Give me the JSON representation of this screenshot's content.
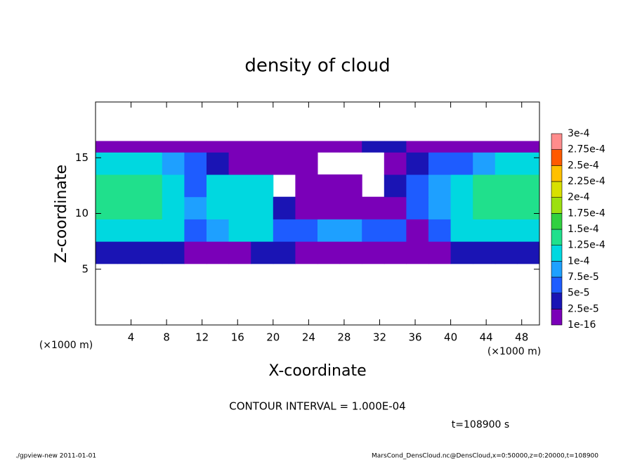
{
  "chart_data": {
    "type": "contour",
    "title": "density of cloud",
    "xlabel": "X-coordinate",
    "ylabel": "Z-coordinate",
    "x_unit": "(×1000 m)",
    "y_unit": "(×1000 m)",
    "note": "CONTOUR INTERVAL = 1.000E-04",
    "time": "t=108900 s",
    "footer_left": "./gpview-new   2011-01-01",
    "footer_right": "MarsCond_DensCloud.nc@DensCloud,x=0:50000,z=0:20000,t=108900",
    "xlim": [
      0,
      50
    ],
    "ylim": [
      0,
      20
    ],
    "xticks": [
      4,
      8,
      12,
      16,
      20,
      24,
      28,
      32,
      36,
      40,
      44,
      48
    ],
    "yticks": [
      5,
      10,
      15
    ],
    "x_edges": [
      0,
      2.5,
      5,
      7.5,
      10,
      12.5,
      15,
      17.5,
      20,
      22.5,
      25,
      27.5,
      30,
      32.5,
      35,
      37.5,
      40,
      42.5,
      45,
      47.5,
      50
    ],
    "y_edges": [
      5.5,
      7.5,
      9.5,
      11.5,
      13.5,
      15.5,
      16.5
    ],
    "z": [
      [
        4e-05,
        4e-05,
        4e-05,
        4e-05,
        2e-05,
        1e-05,
        2e-05,
        3e-05,
        3e-05,
        1e-05,
        1e-05,
        2e-05,
        1e-05,
        1e-05,
        5e-06,
        1e-05,
        3e-05,
        4e-05,
        4e-05,
        4e-05
      ],
      [
        0.00012,
        0.00012,
        0.00012,
        0.00011,
        6e-05,
        9e-05,
        0.000105,
        0.00011,
        6e-05,
        5e-05,
        8e-05,
        8e-05,
        7e-05,
        5e-05,
        2e-05,
        6e-05,
        0.00011,
        0.00012,
        0.00012,
        0.00012
      ],
      [
        0.00013,
        0.000135,
        0.00013,
        0.00012,
        8e-05,
        0.000105,
        0.000115,
        0.000115,
        3e-05,
        1e-05,
        1e-05,
        1e-05,
        1e-05,
        2e-05,
        5e-05,
        8e-05,
        0.00012,
        0.00013,
        0.000135,
        0.00013
      ],
      [
        0.000135,
        0.00014,
        0.000135,
        0.00011,
        5e-05,
        0.0001,
        0.000115,
        0.00011,
        null,
        1e-05,
        1e-05,
        1e-05,
        null,
        3e-05,
        5e-05,
        8e-05,
        0.00012,
        0.00013,
        0.000135,
        0.00013
      ],
      [
        0.00011,
        0.000115,
        0.00011,
        9e-05,
        5e-05,
        3e-05,
        2e-05,
        2e-05,
        1e-05,
        1e-05,
        null,
        null,
        null,
        1e-05,
        4e-05,
        5e-05,
        7e-05,
        9e-05,
        0.0001,
        0.0001
      ],
      [
        1e-05,
        1e-05,
        1e-05,
        1e-05,
        1e-05,
        1e-05,
        1e-05,
        1e-05,
        1e-05,
        1e-05,
        1e-05,
        1e-05,
        3e-05,
        3e-05,
        1e-05,
        1e-05,
        1e-05,
        1e-05,
        1e-05,
        1e-05
      ]
    ],
    "levels": [
      {
        "value": 1e-16,
        "label": "1e-16"
      },
      {
        "value": 2.5e-05,
        "label": "2.5e-5"
      },
      {
        "value": 5e-05,
        "label": "5e-5"
      },
      {
        "value": 7.5e-05,
        "label": "7.5e-5"
      },
      {
        "value": 0.0001,
        "label": "1e-4"
      },
      {
        "value": 0.000125,
        "label": "1.25e-4"
      },
      {
        "value": 0.00015,
        "label": "1.5e-4"
      },
      {
        "value": 0.000175,
        "label": "1.75e-4"
      },
      {
        "value": 0.0002,
        "label": "2e-4"
      },
      {
        "value": 0.000225,
        "label": "2.25e-4"
      },
      {
        "value": 0.00025,
        "label": "2.5e-4"
      },
      {
        "value": 0.000275,
        "label": "2.75e-4"
      },
      {
        "value": 0.0003,
        "label": "3e-4"
      }
    ],
    "level_colors": [
      "#7a00b8",
      "#1a14b4",
      "#1e5cff",
      "#1ea0ff",
      "#00d8e0",
      "#20e08c",
      "#30d040",
      "#9ce010",
      "#d8e000",
      "#ffc000",
      "#ff5a00",
      "#ff8c8c"
    ]
  }
}
